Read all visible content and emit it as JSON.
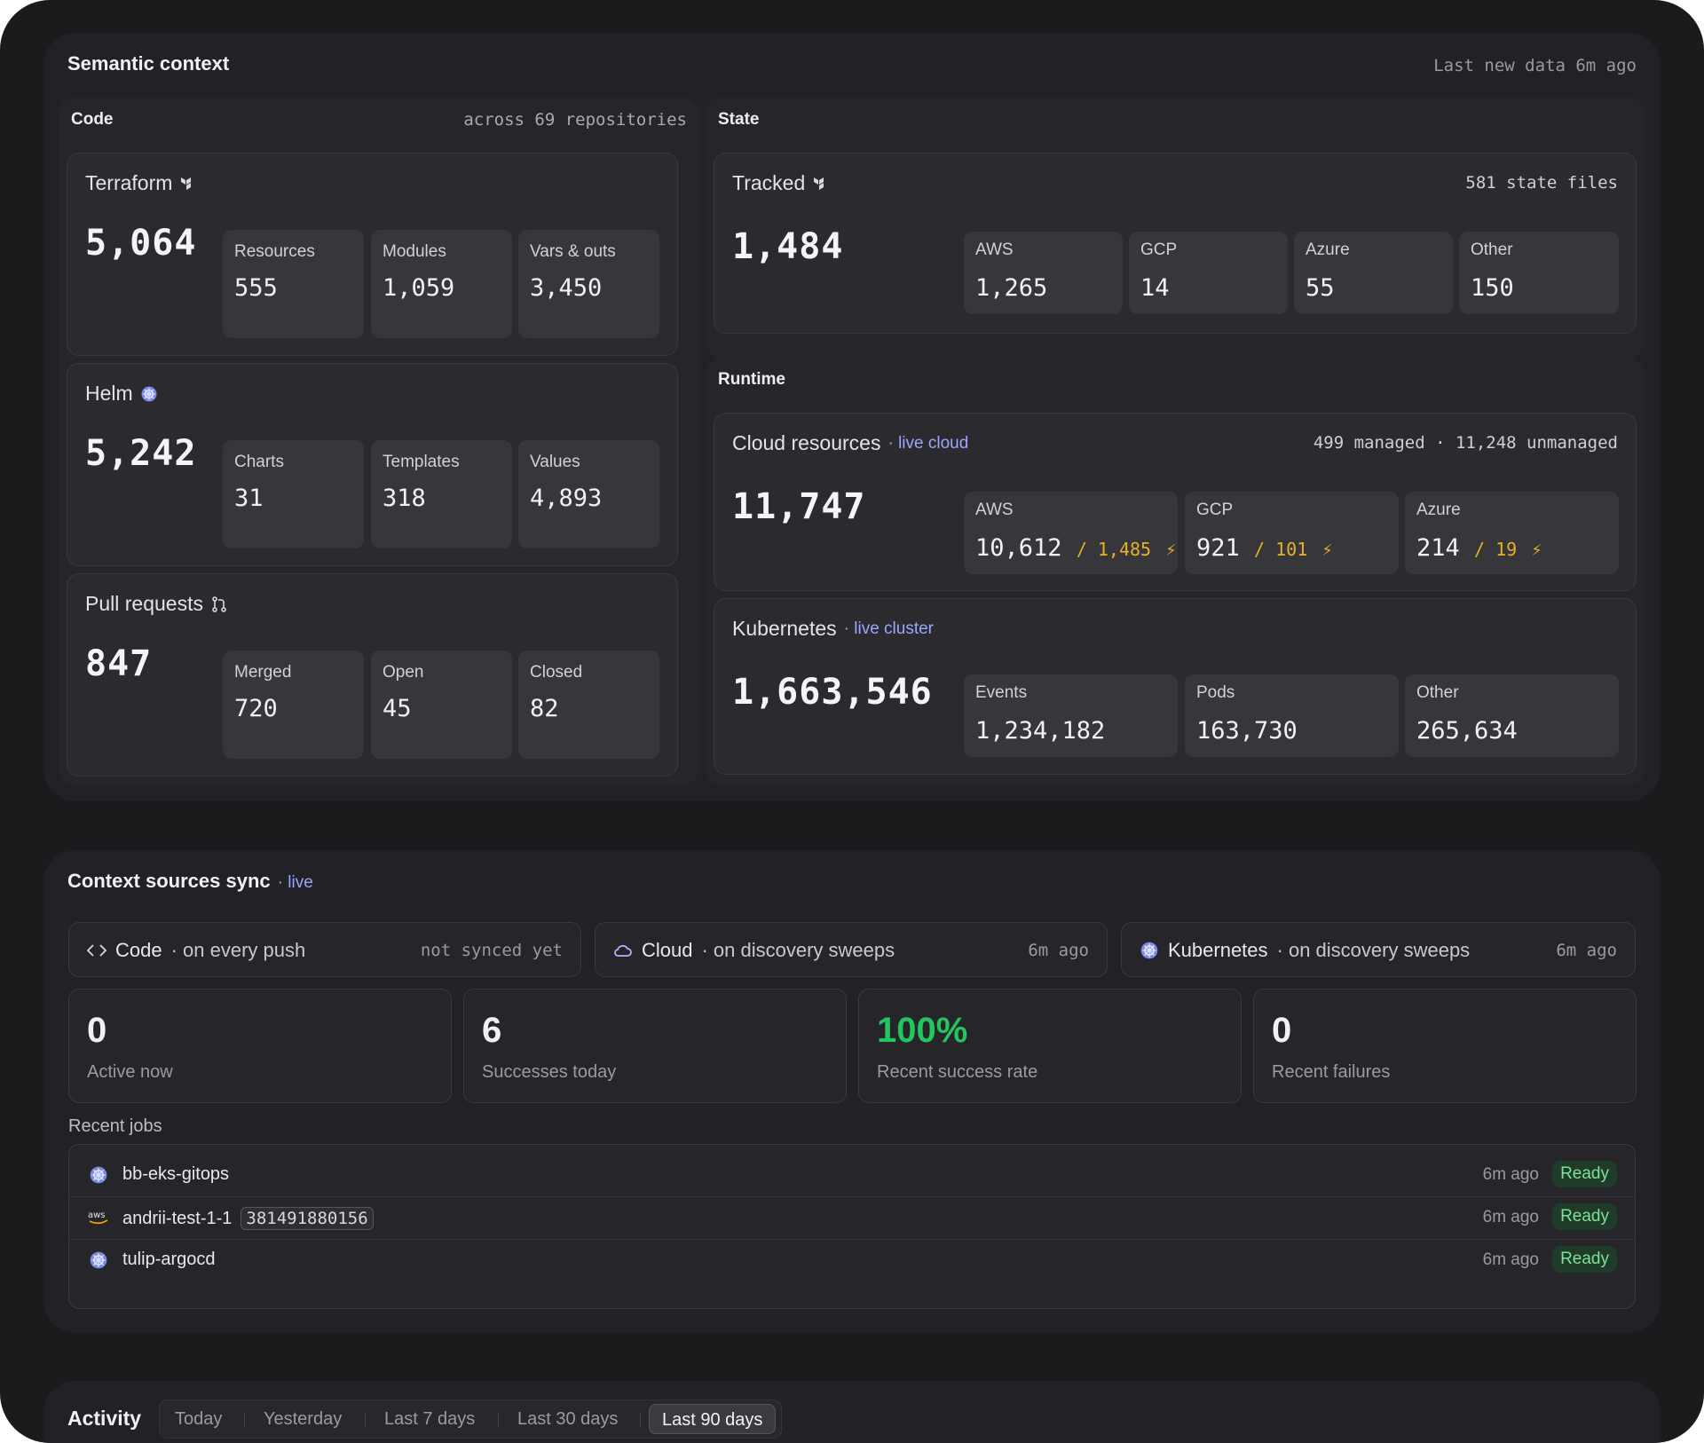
{
  "semantic": {
    "title": "Semantic context",
    "last_data": "Last new data 6m ago",
    "code": {
      "title": "Code",
      "note": "across 69 repositories",
      "terraform": {
        "title": "Terraform",
        "total": "5,064",
        "items": [
          {
            "label": "Resources",
            "value": "555"
          },
          {
            "label": "Modules",
            "value": "1,059"
          },
          {
            "label": "Vars & outs",
            "value": "3,450"
          }
        ]
      },
      "helm": {
        "title": "Helm",
        "total": "5,242",
        "items": [
          {
            "label": "Charts",
            "value": "31"
          },
          {
            "label": "Templates",
            "value": "318"
          },
          {
            "label": "Values",
            "value": "4,893"
          }
        ]
      },
      "prs": {
        "title": "Pull requests",
        "total": "847",
        "items": [
          {
            "label": "Merged",
            "value": "720"
          },
          {
            "label": "Open",
            "value": "45"
          },
          {
            "label": "Closed",
            "value": "82"
          }
        ]
      }
    },
    "state": {
      "title": "State",
      "tracked": {
        "title": "Tracked",
        "note": "581 state files",
        "total": "1,484",
        "items": [
          {
            "label": "AWS",
            "value": "1,265"
          },
          {
            "label": "GCP",
            "value": "14"
          },
          {
            "label": "Azure",
            "value": "55"
          },
          {
            "label": "Other",
            "value": "150"
          }
        ]
      }
    },
    "runtime": {
      "title": "Runtime",
      "cloud": {
        "title": "Cloud resources",
        "tag": "· live cloud",
        "note": "499 managed · 11,248 unmanaged",
        "total": "11,747",
        "items": [
          {
            "label": "AWS",
            "value": "10,612",
            "drift": "/ 1,485"
          },
          {
            "label": "GCP",
            "value": "921",
            "drift": "/ 101"
          },
          {
            "label": "Azure",
            "value": "214",
            "drift": "/ 19"
          }
        ]
      },
      "k8s": {
        "title": "Kubernetes",
        "tag": "· live cluster",
        "total": "1,663,546",
        "items": [
          {
            "label": "Events",
            "value": "1,234,182"
          },
          {
            "label": "Pods",
            "value": "163,730"
          },
          {
            "label": "Other",
            "value": "265,634"
          }
        ]
      }
    }
  },
  "sync": {
    "title": "Context sources sync",
    "tag": "· live",
    "sources": [
      {
        "name": "Code",
        "note": "· on every push",
        "time": "not synced yet",
        "icon": "code-icon"
      },
      {
        "name": "Cloud",
        "note": "· on discovery sweeps",
        "time": "6m ago",
        "icon": "cloud-icon"
      },
      {
        "name": "Kubernetes",
        "note": "· on discovery sweeps",
        "time": "6m ago",
        "icon": "kubernetes-icon"
      }
    ],
    "stats": [
      {
        "value": "0",
        "label": "Active now"
      },
      {
        "value": "6",
        "label": "Successes today"
      },
      {
        "value": "100%",
        "label": "Recent success rate"
      },
      {
        "value": "0",
        "label": "Recent failures"
      }
    ],
    "success_color": "#22c55e",
    "recent_label": "Recent jobs",
    "jobs": [
      {
        "name": "bb-eks-gitops",
        "account": "",
        "ago": "6m ago",
        "status": "Ready",
        "icon": "kubernetes-icon"
      },
      {
        "name": "andrii-test-1-1",
        "account": "381491880156",
        "ago": "6m ago",
        "status": "Ready",
        "icon": "aws-icon"
      },
      {
        "name": "tulip-argocd",
        "account": "",
        "ago": "6m ago",
        "status": "Ready",
        "icon": "kubernetes-icon"
      }
    ]
  },
  "activity": {
    "title": "Activity",
    "tabs": [
      "Today",
      "Yesterday",
      "Last 7 days",
      "Last 30 days",
      "Last 90 days"
    ],
    "active_tab": "Last 90 days"
  },
  "colors": {
    "accent_blue": "#9aa6ff",
    "warning": "#e6b325",
    "ready_bg": "#1f3b2a",
    "ready_text": "#7fe09a"
  }
}
